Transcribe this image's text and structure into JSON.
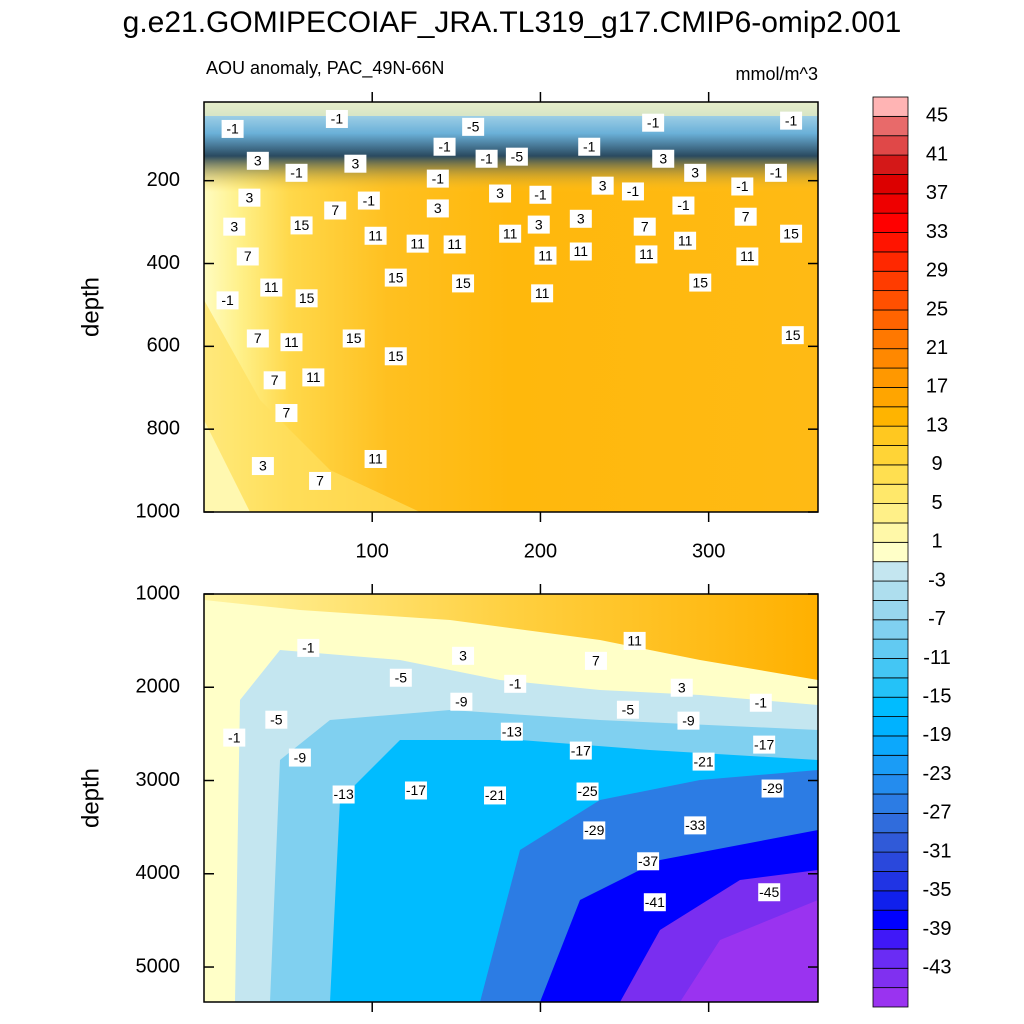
{
  "title": "g.e21.GOMIPECOIAF_JRA.TL319_g17.CMIP6-omip2.001",
  "subtitle": "AOU anomaly, PAC_49N-66N",
  "units": "mmol/m^3",
  "chart_data": [
    {
      "type": "contour",
      "ylabel": "depth",
      "xlim": [
        0,
        365
      ],
      "xticks": [
        100,
        200,
        300
      ],
      "show_xtick_labels": true,
      "ylim": [
        10,
        1000
      ],
      "yticks": [
        200,
        400,
        600,
        800,
        1000
      ],
      "y_reversed": true,
      "contour_labels": [
        {
          "value": -1,
          "x": 17,
          "depth": 75
        },
        {
          "value": -1,
          "x": 79,
          "depth": 51
        },
        {
          "value": -5,
          "x": 160,
          "depth": 70
        },
        {
          "value": -1,
          "x": 143,
          "depth": 118
        },
        {
          "value": -1,
          "x": 168,
          "depth": 147
        },
        {
          "value": -5,
          "x": 186,
          "depth": 142
        },
        {
          "value": -1,
          "x": 229,
          "depth": 118
        },
        {
          "value": -1,
          "x": 267,
          "depth": 60
        },
        {
          "value": -1,
          "x": 349,
          "depth": 55
        },
        {
          "value": 3,
          "x": 32,
          "depth": 152
        },
        {
          "value": 3,
          "x": 27,
          "depth": 241
        },
        {
          "value": -1,
          "x": 55,
          "depth": 181
        },
        {
          "value": 3,
          "x": 90,
          "depth": 159
        },
        {
          "value": -1,
          "x": 98,
          "depth": 248
        },
        {
          "value": 7,
          "x": 78,
          "depth": 272
        },
        {
          "value": 15,
          "x": 58,
          "depth": 308
        },
        {
          "value": 3,
          "x": 139,
          "depth": 267
        },
        {
          "value": -1,
          "x": 139,
          "depth": 195
        },
        {
          "value": 3,
          "x": 176,
          "depth": 231
        },
        {
          "value": -1,
          "x": 200,
          "depth": 234
        },
        {
          "value": 3,
          "x": 237,
          "depth": 212
        },
        {
          "value": 3,
          "x": 273,
          "depth": 147
        },
        {
          "value": 3,
          "x": 292,
          "depth": 181
        },
        {
          "value": -1,
          "x": 255,
          "depth": 226
        },
        {
          "value": -1,
          "x": 285,
          "depth": 260
        },
        {
          "value": -1,
          "x": 320,
          "depth": 214
        },
        {
          "value": -1,
          "x": 340,
          "depth": 181
        },
        {
          "value": 3,
          "x": 18,
          "depth": 311
        },
        {
          "value": 11,
          "x": 102,
          "depth": 333
        },
        {
          "value": 11,
          "x": 127,
          "depth": 352
        },
        {
          "value": 11,
          "x": 149,
          "depth": 354
        },
        {
          "value": 11,
          "x": 182,
          "depth": 328
        },
        {
          "value": 3,
          "x": 199,
          "depth": 306
        },
        {
          "value": 3,
          "x": 224,
          "depth": 292
        },
        {
          "value": 11,
          "x": 203,
          "depth": 381
        },
        {
          "value": 11,
          "x": 224,
          "depth": 371
        },
        {
          "value": 7,
          "x": 262,
          "depth": 311
        },
        {
          "value": 11,
          "x": 286,
          "depth": 345
        },
        {
          "value": 7,
          "x": 322,
          "depth": 287
        },
        {
          "value": 15,
          "x": 349,
          "depth": 328
        },
        {
          "value": 11,
          "x": 263,
          "depth": 378
        },
        {
          "value": 11,
          "x": 323,
          "depth": 383
        },
        {
          "value": 7,
          "x": 26,
          "depth": 383
        },
        {
          "value": 15,
          "x": 114,
          "depth": 434
        },
        {
          "value": 15,
          "x": 154,
          "depth": 448
        },
        {
          "value": 11,
          "x": 201,
          "depth": 472
        },
        {
          "value": 15,
          "x": 295,
          "depth": 446
        },
        {
          "value": 11,
          "x": 40,
          "depth": 458
        },
        {
          "value": 15,
          "x": 61,
          "depth": 484
        },
        {
          "value": -1,
          "x": 14,
          "depth": 489
        },
        {
          "value": 7,
          "x": 32,
          "depth": 581
        },
        {
          "value": 11,
          "x": 52,
          "depth": 590
        },
        {
          "value": 15,
          "x": 89,
          "depth": 581
        },
        {
          "value": 15,
          "x": 114,
          "depth": 624
        },
        {
          "value": 15,
          "x": 350,
          "depth": 573
        },
        {
          "value": 7,
          "x": 42,
          "depth": 682
        },
        {
          "value": 11,
          "x": 65,
          "depth": 675
        },
        {
          "value": 7,
          "x": 49,
          "depth": 761
        },
        {
          "value": 11,
          "x": 102,
          "depth": 872
        },
        {
          "value": 3,
          "x": 35,
          "depth": 889
        },
        {
          "value": 7,
          "x": 69,
          "depth": 925
        }
      ]
    },
    {
      "type": "contour",
      "ylabel": "depth",
      "xlim": [
        0,
        365
      ],
      "xticks": [
        100,
        200,
        300
      ],
      "show_xtick_labels": false,
      "ylim": [
        1000,
        5375
      ],
      "yticks": [
        1000,
        2000,
        3000,
        4000,
        5000
      ],
      "y_reversed": true,
      "contour_labels": [
        {
          "value": -1,
          "x": 62,
          "depth": 1578
        },
        {
          "value": 3,
          "x": 154,
          "depth": 1663
        },
        {
          "value": 11,
          "x": 256,
          "depth": 1503
        },
        {
          "value": 7,
          "x": 233,
          "depth": 1717
        },
        {
          "value": -5,
          "x": 117,
          "depth": 1898
        },
        {
          "value": -1,
          "x": 185,
          "depth": 1963
        },
        {
          "value": -9,
          "x": 153,
          "depth": 2155
        },
        {
          "value": 3,
          "x": 284,
          "depth": 2005
        },
        {
          "value": -1,
          "x": 331,
          "depth": 2166
        },
        {
          "value": -5,
          "x": 252,
          "depth": 2241
        },
        {
          "value": -9,
          "x": 288,
          "depth": 2358
        },
        {
          "value": -5,
          "x": 43,
          "depth": 2348
        },
        {
          "value": -1,
          "x": 18,
          "depth": 2540
        },
        {
          "value": -13,
          "x": 183,
          "depth": 2476
        },
        {
          "value": -17,
          "x": 224,
          "depth": 2679
        },
        {
          "value": -17,
          "x": 333,
          "depth": 2615
        },
        {
          "value": -9,
          "x": 57,
          "depth": 2754
        },
        {
          "value": -21,
          "x": 297,
          "depth": 2797
        },
        {
          "value": -13,
          "x": 83,
          "depth": 3150
        },
        {
          "value": -17,
          "x": 126,
          "depth": 3107
        },
        {
          "value": -21,
          "x": 173,
          "depth": 3160
        },
        {
          "value": -25,
          "x": 228,
          "depth": 3118
        },
        {
          "value": -29,
          "x": 338,
          "depth": 3086
        },
        {
          "value": -33,
          "x": 292,
          "depth": 3481
        },
        {
          "value": -29,
          "x": 232,
          "depth": 3535
        },
        {
          "value": -37,
          "x": 264,
          "depth": 3866
        },
        {
          "value": -41,
          "x": 268,
          "depth": 4305
        },
        {
          "value": -45,
          "x": 336,
          "depth": 4198
        }
      ]
    }
  ],
  "colorbar": {
    "levels": [
      -45,
      -43,
      -41,
      -39,
      -37,
      -35,
      -33,
      -31,
      -29,
      -27,
      -25,
      -23,
      -21,
      -19,
      -17,
      -15,
      -13,
      -11,
      -9,
      -7,
      -5,
      -3,
      -1,
      1,
      3,
      5,
      7,
      9,
      11,
      13,
      15,
      17,
      19,
      21,
      23,
      25,
      27,
      29,
      31,
      33,
      35,
      37,
      39,
      41,
      43,
      45
    ],
    "colors": [
      "#9a33f0",
      "#8030f0",
      "#6a2cf4",
      "#4018f8",
      "#0000ff",
      "#1020ec",
      "#2034e4",
      "#2a48dc",
      "#305ad8",
      "#306cdc",
      "#2c7ce4",
      "#248cee",
      "#1a9cf6",
      "#0ca8fc",
      "#00b2ff",
      "#00bcff",
      "#24c2f8",
      "#44c6f4",
      "#62caf2",
      "#80d0f0",
      "#98d6ee",
      "#aedeee",
      "#c4e6f0",
      "#ffffc8",
      "#fff8a8",
      "#fff088",
      "#ffe86a",
      "#ffdf50",
      "#ffd436",
      "#ffc820",
      "#ffb400",
      "#ffa500",
      "#ff9800",
      "#ff8800",
      "#ff7800",
      "#ff6400",
      "#ff5000",
      "#ff3c00",
      "#ff2800",
      "#ff1400",
      "#ff0000",
      "#ee0000",
      "#dc0000",
      "#d41818",
      "#e04848",
      "#e86a6a",
      "#ffb4b4"
    ],
    "labels": [
      45,
      41,
      37,
      33,
      29,
      25,
      21,
      17,
      13,
      9,
      5,
      1,
      -3,
      -7,
      -11,
      -15,
      -19,
      -23,
      -27,
      -31,
      -35,
      -39,
      -43
    ]
  }
}
